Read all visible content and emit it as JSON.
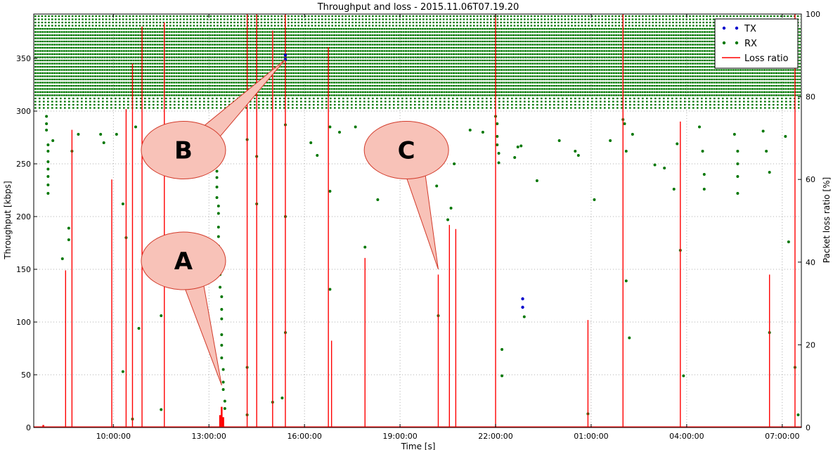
{
  "chart_data": {
    "type": "scatter",
    "title": "Throughput and loss - 2015.11.06T07.19.20",
    "xlabel": "Time [s]",
    "ylabel": "Throughput [kbps]",
    "y2label": "Packet loss ratio [%]",
    "x_range_hours": [
      7.5,
      31.6
    ],
    "ylim": [
      0,
      392
    ],
    "y2lim": [
      0,
      100
    ],
    "grid": true,
    "legend_position": "top-right",
    "x_ticks": [
      {
        "label": "10:00:00",
        "h": 10
      },
      {
        "label": "13:00:00",
        "h": 13
      },
      {
        "label": "16:00:00",
        "h": 16
      },
      {
        "label": "19:00:00",
        "h": 19
      },
      {
        "label": "22:00:00",
        "h": 22
      },
      {
        "label": "01:00:00",
        "h": 25
      },
      {
        "label": "04:00:00",
        "h": 28
      },
      {
        "label": "07:00:00",
        "h": 31
      }
    ],
    "y_ticks": [
      {
        "label": "0",
        "v": 0
      },
      {
        "label": "50",
        "v": 50
      },
      {
        "label": "100",
        "v": 100
      },
      {
        "label": "150",
        "v": 150
      },
      {
        "label": "200",
        "v": 200
      },
      {
        "label": "250",
        "v": 250
      },
      {
        "label": "300",
        "v": 300
      },
      {
        "label": "350",
        "v": 350
      }
    ],
    "y2_ticks": [
      {
        "label": "0",
        "v": 0
      },
      {
        "label": "20",
        "v": 20
      },
      {
        "label": "40",
        "v": 40
      },
      {
        "label": "60",
        "v": 60
      },
      {
        "label": "80",
        "v": 80
      },
      {
        "label": "100",
        "v": 100
      }
    ],
    "series": [
      {
        "name": "TX",
        "color": "#0000cc",
        "marker": "dot",
        "points": [
          [
            15.4,
            349
          ],
          [
            15.4,
            353
          ],
          [
            22.85,
            122
          ],
          [
            22.85,
            114
          ]
        ]
      },
      {
        "name": "RX",
        "color": "#007700",
        "marker": "dot",
        "band_rows_kbps": [
          390,
          387,
          384,
          381,
          378,
          375,
          372,
          369,
          366,
          363,
          360,
          357,
          354,
          351,
          348,
          345,
          342,
          339,
          336,
          333,
          330,
          327,
          324,
          321,
          318,
          315,
          312,
          309,
          306,
          303
        ],
        "points": [
          [
            7.9,
            295
          ],
          [
            7.9,
            288
          ],
          [
            7.9,
            282
          ],
          [
            7.95,
            268
          ],
          [
            7.95,
            262
          ],
          [
            7.95,
            252
          ],
          [
            7.95,
            245
          ],
          [
            7.95,
            238
          ],
          [
            7.95,
            230
          ],
          [
            7.95,
            222
          ],
          [
            8.1,
            272
          ],
          [
            8.4,
            160
          ],
          [
            8.6,
            189
          ],
          [
            8.6,
            178
          ],
          [
            8.7,
            262
          ],
          [
            8.9,
            278
          ],
          [
            9.6,
            278
          ],
          [
            9.7,
            270
          ],
          [
            10.1,
            278
          ],
          [
            10.3,
            212
          ],
          [
            10.3,
            53
          ],
          [
            10.4,
            180
          ],
          [
            10.6,
            8
          ],
          [
            10.7,
            285
          ],
          [
            10.8,
            94
          ],
          [
            11.5,
            106
          ],
          [
            11.5,
            17
          ],
          [
            11.6,
            282
          ],
          [
            12.3,
            286
          ],
          [
            12.6,
            280
          ],
          [
            13.2,
            287
          ],
          [
            13.2,
            268
          ],
          [
            13.2,
            253
          ],
          [
            13.25,
            243
          ],
          [
            13.25,
            237
          ],
          [
            13.25,
            228
          ],
          [
            13.25,
            218
          ],
          [
            13.3,
            210
          ],
          [
            13.3,
            203
          ],
          [
            13.3,
            190
          ],
          [
            13.3,
            181
          ],
          [
            13.3,
            172
          ],
          [
            13.35,
            163
          ],
          [
            13.35,
            152
          ],
          [
            13.35,
            145
          ],
          [
            13.35,
            133
          ],
          [
            13.4,
            124
          ],
          [
            13.4,
            112
          ],
          [
            13.4,
            103
          ],
          [
            13.4,
            88
          ],
          [
            13.4,
            78
          ],
          [
            13.4,
            66
          ],
          [
            13.45,
            55
          ],
          [
            13.45,
            43
          ],
          [
            13.45,
            36
          ],
          [
            13.5,
            25
          ],
          [
            13.5,
            18
          ],
          [
            14.2,
            273
          ],
          [
            14.2,
            57
          ],
          [
            14.2,
            12
          ],
          [
            14.5,
            257
          ],
          [
            14.5,
            212
          ],
          [
            15.0,
            24
          ],
          [
            15.4,
            287
          ],
          [
            15.4,
            200
          ],
          [
            15.4,
            90
          ],
          [
            15.3,
            28
          ],
          [
            16.2,
            270
          ],
          [
            16.4,
            258
          ],
          [
            16.8,
            285
          ],
          [
            16.8,
            224
          ],
          [
            16.8,
            131
          ],
          [
            17.1,
            280
          ],
          [
            17.6,
            285
          ],
          [
            17.9,
            171
          ],
          [
            18.1,
            276
          ],
          [
            18.3,
            216
          ],
          [
            18.5,
            262
          ],
          [
            18.7,
            257
          ],
          [
            19.5,
            281
          ],
          [
            19.6,
            274
          ],
          [
            19.7,
            276
          ],
          [
            20.1,
            270
          ],
          [
            20.15,
            229
          ],
          [
            20.2,
            106
          ],
          [
            20.5,
            197
          ],
          [
            20.6,
            208
          ],
          [
            20.7,
            250
          ],
          [
            21.2,
            282
          ],
          [
            21.6,
            280
          ],
          [
            22.0,
            295
          ],
          [
            22.05,
            288
          ],
          [
            22.05,
            276
          ],
          [
            22.05,
            268
          ],
          [
            22.1,
            260
          ],
          [
            22.1,
            251
          ],
          [
            22.2,
            74
          ],
          [
            22.2,
            49
          ],
          [
            22.6,
            256
          ],
          [
            22.7,
            266
          ],
          [
            22.8,
            267
          ],
          [
            22.9,
            105
          ],
          [
            23.3,
            234
          ],
          [
            24.0,
            272
          ],
          [
            24.5,
            262
          ],
          [
            24.6,
            258
          ],
          [
            24.9,
            13
          ],
          [
            25.1,
            216
          ],
          [
            25.6,
            272
          ],
          [
            26.0,
            292
          ],
          [
            26.05,
            288
          ],
          [
            26.1,
            262
          ],
          [
            26.1,
            139
          ],
          [
            26.2,
            85
          ],
          [
            26.3,
            278
          ],
          [
            27.0,
            249
          ],
          [
            27.3,
            246
          ],
          [
            27.6,
            226
          ],
          [
            27.7,
            269
          ],
          [
            27.8,
            168
          ],
          [
            27.9,
            49
          ],
          [
            28.4,
            285
          ],
          [
            28.5,
            262
          ],
          [
            28.55,
            240
          ],
          [
            28.55,
            226
          ],
          [
            29.5,
            278
          ],
          [
            29.6,
            262
          ],
          [
            29.6,
            250
          ],
          [
            29.6,
            238
          ],
          [
            29.6,
            222
          ],
          [
            30.4,
            281
          ],
          [
            30.5,
            262
          ],
          [
            30.6,
            242
          ],
          [
            30.6,
            90
          ],
          [
            31.1,
            276
          ],
          [
            31.2,
            176
          ],
          [
            31.4,
            57
          ],
          [
            31.5,
            12
          ]
        ]
      },
      {
        "name": "Loss ratio",
        "color": "#ff0000",
        "marker": "line",
        "spikes": [
          [
            7.8,
            0.6
          ],
          [
            8.5,
            38
          ],
          [
            8.7,
            72
          ],
          [
            9.95,
            60
          ],
          [
            10.4,
            77
          ],
          [
            10.6,
            88
          ],
          [
            10.9,
            97
          ],
          [
            11.6,
            98
          ],
          [
            13.35,
            3
          ],
          [
            13.4,
            5
          ],
          [
            13.45,
            2.5
          ],
          [
            14.2,
            100
          ],
          [
            14.5,
            100
          ],
          [
            15.0,
            96
          ],
          [
            15.4,
            100
          ],
          [
            16.75,
            92
          ],
          [
            16.85,
            21
          ],
          [
            17.9,
            41
          ],
          [
            20.2,
            37
          ],
          [
            20.55,
            49
          ],
          [
            20.75,
            48
          ],
          [
            22.0,
            100
          ],
          [
            24.9,
            26
          ],
          [
            26.0,
            100
          ],
          [
            27.8,
            74
          ],
          [
            30.6,
            37
          ],
          [
            31.4,
            100
          ]
        ]
      }
    ],
    "annotations": [
      {
        "label": "A",
        "text_h": 12.2,
        "text_v": 158,
        "tip_h": 13.4,
        "tip_v": 40
      },
      {
        "label": "B",
        "text_h": 12.2,
        "text_v": 263,
        "tip_h": 15.4,
        "tip_v": 349
      },
      {
        "label": "C",
        "text_h": 19.2,
        "text_v": 263,
        "tip_h": 20.2,
        "tip_v": 150
      }
    ]
  }
}
